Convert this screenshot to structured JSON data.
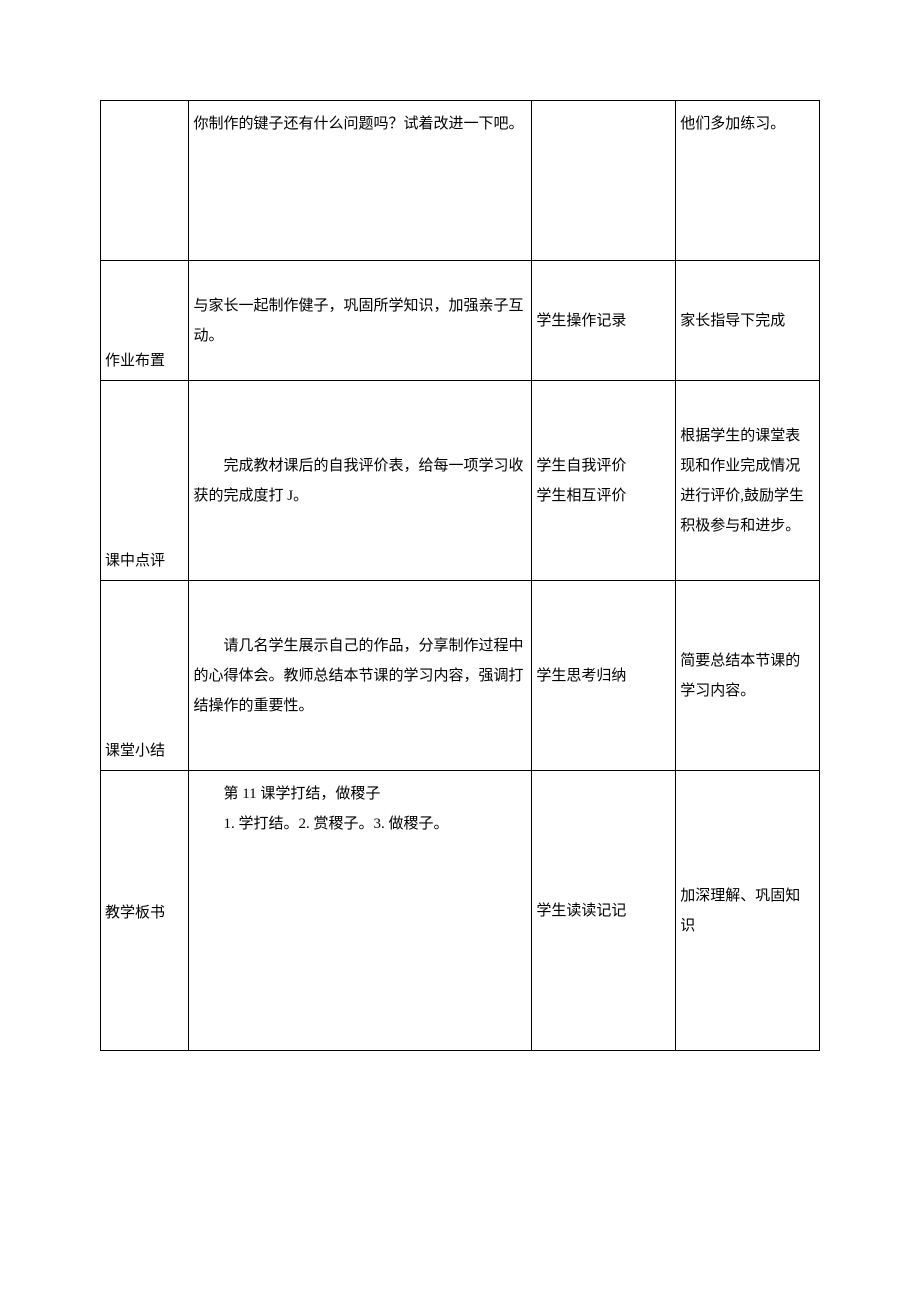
{
  "rows": [
    {
      "label": "",
      "content_lines": [
        "你制作的键子还有什么问题吗？试着改进一下吧。"
      ],
      "student": "",
      "note": "他们多加练习。",
      "note_valign": "top"
    },
    {
      "label": "作业布置",
      "content_lines": [
        "与家长一起制作健子，巩固所学知识，加强亲子互动。"
      ],
      "student": "学生操作记录",
      "note": "家长指导下完成"
    },
    {
      "label": "课中点评",
      "content_lines_indented": [
        "完成教材课后的自我评价表，给每一项学习收获的完成度打 J。"
      ],
      "student_lines": [
        "学生自我评价",
        "学生相互评价"
      ],
      "note": "根据学生的课堂表现和作业完成情况进行评价,鼓励学生积极参与和进步。"
    },
    {
      "label": "课堂小结",
      "content_lines_indented": [
        "请几名学生展示自己的作品，分享制作过程中的心得体会。教师总结本节课的学习内容，强调打结操作的重要性。"
      ],
      "student": "学生思考归纳",
      "note": "简要总结本节课的学习内容。"
    },
    {
      "label": "教学板书",
      "content_top_lines": [
        "第 11 课学打结，做稷子",
        "1. 学打结。2. 赏稷子。3. 做稷子。"
      ],
      "student": "学生读读记记",
      "note": "加深理解、巩固知识"
    }
  ]
}
